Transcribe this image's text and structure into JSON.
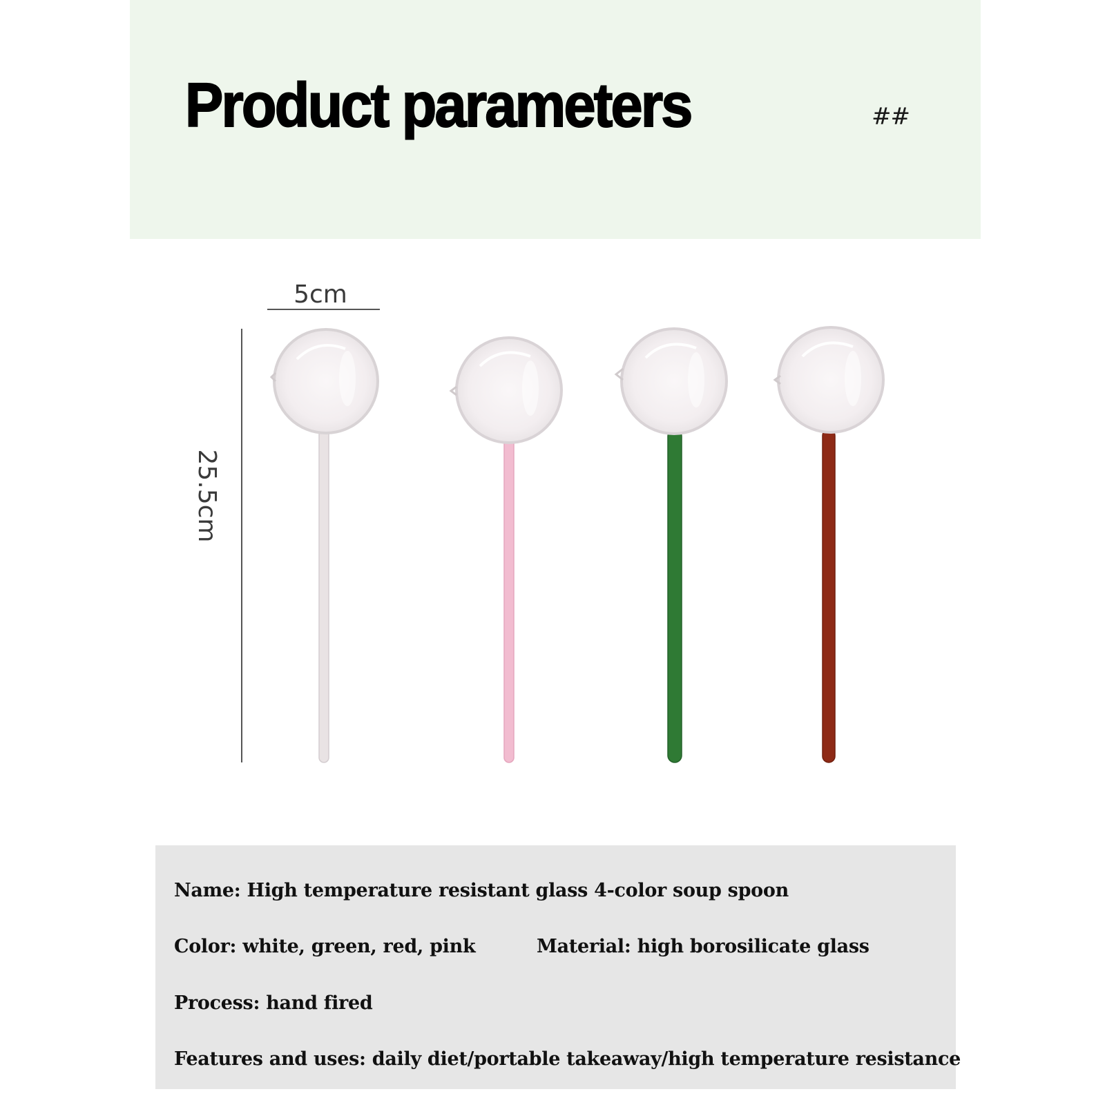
{
  "header": {
    "title": "Product parameters",
    "mark": "##",
    "background_color": "#eef6ec"
  },
  "dimensions": {
    "width_label": "5cm",
    "height_label": "25.5cm"
  },
  "spoons": [
    {
      "stem_color": "#e9e3e4"
    },
    {
      "stem_color": "#f2bcd0"
    },
    {
      "stem_color": "#2f7a34"
    },
    {
      "stem_color": "#8e2a16"
    }
  ],
  "specs": {
    "name": "Name: High temperature resistant glass 4-color soup spoon",
    "color": "Color: white, green, red, pink",
    "material": "Material: high borosilicate glass",
    "process": "Process: hand fired",
    "features": "Features and uses: daily diet/portable takeaway/high temperature resistance",
    "panel_color": "#e6e6e6"
  }
}
